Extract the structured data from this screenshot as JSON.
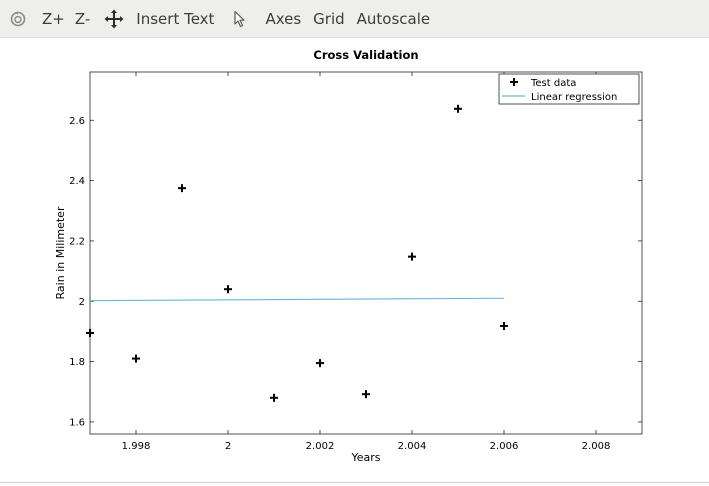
{
  "toolbar": {
    "items": [
      {
        "name": "rotate-tool-icon",
        "type": "icon",
        "icon": "rotate-icon"
      },
      {
        "name": "zoom-in-button",
        "type": "text",
        "label": "Z+"
      },
      {
        "name": "zoom-out-button",
        "type": "text",
        "label": "Z-"
      },
      {
        "name": "pan-tool-icon",
        "type": "icon",
        "icon": "move-icon"
      },
      {
        "name": "insert-text-button",
        "type": "text",
        "label": "Insert Text"
      },
      {
        "name": "select-tool-icon",
        "type": "icon",
        "icon": "pointer-icon"
      },
      {
        "name": "axes-button",
        "type": "text",
        "label": "Axes"
      },
      {
        "name": "grid-button",
        "type": "text",
        "label": "Grid"
      },
      {
        "name": "autoscale-button",
        "type": "text",
        "label": "Autoscale"
      }
    ]
  },
  "chart_data": {
    "type": "scatter",
    "title": "Cross Validation",
    "xlabel": "Years",
    "ylabel": "Rain in Milimeter",
    "xlim": [
      1997,
      2009
    ],
    "ylim": [
      1.56,
      2.76
    ],
    "xticks": [
      1998,
      2000,
      2002,
      2004,
      2006,
      2008
    ],
    "xtick_labels": [
      "1.998",
      "2",
      "2.002",
      "2.004",
      "2.006",
      "2.008"
    ],
    "yticks": [
      1.6,
      1.8,
      2.0,
      2.2,
      2.4,
      2.6
    ],
    "ytick_labels": [
      "1.6",
      "1.8",
      "2",
      "2.2",
      "2.4",
      "2.6"
    ],
    "grid": false,
    "legend_position": "top-right",
    "series": [
      {
        "name": "Test data",
        "kind": "markers",
        "marker": "plus",
        "color": "#000000",
        "x": [
          1997,
          1998,
          1999,
          2000,
          2001,
          2002,
          2003,
          2004,
          2005,
          2006
        ],
        "y": [
          1.895,
          1.81,
          2.375,
          2.04,
          1.68,
          1.795,
          1.692,
          2.148,
          2.638,
          1.918
        ]
      },
      {
        "name": "Linear regression",
        "kind": "line",
        "color": "#6ab4d8",
        "x": [
          1997,
          2006
        ],
        "y": [
          2.002,
          2.01
        ]
      }
    ]
  }
}
